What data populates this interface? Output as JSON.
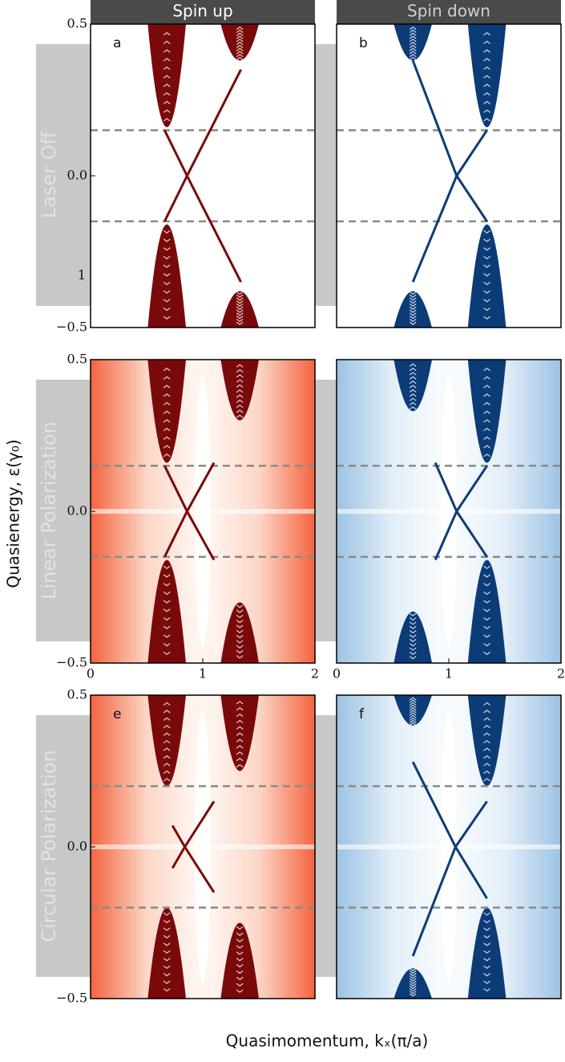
{
  "header": {
    "left": "Spin up",
    "right": "Spin down"
  },
  "row_labels": [
    "Laser Off",
    "Linear Polarization",
    "Circular Polarization"
  ],
  "y_label": "Quasienergy, ε(γ₀)",
  "x_label": "Quasimomentum, kₓ(π/a)",
  "chart_data": [
    {
      "type": "line",
      "label": "a",
      "color": "#7a0a0a",
      "xlim": [
        0,
        2
      ],
      "ylim": [
        -0.5,
        0.5
      ],
      "yticks": [
        0.5,
        {
          "value": 0,
          "label": "0.0"
        },
        {
          "value": -0.5,
          "label": "−0.5"
        }
      ],
      "annotations": [
        "1"
      ],
      "hlines": [
        0.15,
        -0.15
      ],
      "series": [
        {
          "x": [
            0.66,
            0.86,
            1.34
          ],
          "values": [
            0.15,
            0,
            -0.35
          ]
        },
        {
          "x": [
            0.66,
            0.86,
            1.34
          ],
          "values": [
            -0.15,
            0,
            0.35
          ]
        }
      ]
    },
    {
      "type": "line",
      "label": "b",
      "color": "#0b3c78",
      "xlim": [
        0,
        2
      ],
      "ylim": [
        -0.5,
        0.5
      ],
      "hlines": [
        0.15,
        -0.15
      ],
      "series": [
        {
          "x": [
            0.68,
            1.07,
            1.34
          ],
          "values": [
            0.38,
            0,
            -0.15
          ]
        },
        {
          "x": [
            0.68,
            1.07,
            1.34
          ],
          "values": [
            -0.35,
            0,
            0.15
          ]
        }
      ]
    },
    {
      "type": "line",
      "color": "#7a0a0a",
      "xlim": [
        0,
        2
      ],
      "ylim": [
        -0.5,
        0.5
      ],
      "yticks": [
        0.5,
        {
          "value": 0,
          "label": "0.0"
        },
        {
          "value": -0.5,
          "label": "−0.5"
        }
      ],
      "xticks": [
        0,
        1,
        2
      ],
      "hlines": [
        0.15,
        -0.15
      ],
      "series": [
        {
          "x": [
            0.66,
            0.86,
            1.1
          ],
          "values": [
            0.15,
            0,
            -0.16
          ]
        },
        {
          "x": [
            0.66,
            0.86,
            1.1
          ],
          "values": [
            -0.15,
            0,
            0.16
          ]
        }
      ]
    },
    {
      "type": "line",
      "color": "#0b3c78",
      "xlim": [
        0,
        2
      ],
      "ylim": [
        -0.5,
        0.5
      ],
      "xticks": [
        0,
        1,
        2
      ],
      "hlines": [
        0.15,
        -0.15
      ],
      "series": [
        {
          "x": [
            0.88,
            1.07,
            1.34
          ],
          "values": [
            0.16,
            0,
            -0.15
          ]
        },
        {
          "x": [
            0.88,
            1.07,
            1.34
          ],
          "values": [
            -0.16,
            0,
            0.15
          ]
        }
      ]
    },
    {
      "type": "line",
      "label": "e",
      "color": "#7a0a0a",
      "xlim": [
        0,
        2
      ],
      "ylim": [
        -0.5,
        0.5
      ],
      "yticks": [
        0.5,
        {
          "value": 0,
          "label": "0.0"
        },
        {
          "value": -0.5,
          "label": "−0.5"
        }
      ],
      "hlines": [
        0.2,
        -0.2
      ],
      "series": [
        {
          "x": [
            0.73,
            0.84,
            1.1
          ],
          "values": [
            0.07,
            0,
            -0.15
          ]
        },
        {
          "x": [
            0.73,
            0.84,
            1.1
          ],
          "values": [
            -0.07,
            0,
            0.15
          ]
        }
      ]
    },
    {
      "type": "line",
      "label": "f",
      "color": "#0b3c78",
      "xlim": [
        0,
        2
      ],
      "ylim": [
        -0.5,
        0.5
      ],
      "hlines": [
        0.2,
        -0.2
      ],
      "series": [
        {
          "x": [
            0.68,
            1.06,
            1.34
          ],
          "values": [
            0.28,
            0,
            -0.17
          ]
        },
        {
          "x": [
            0.68,
            1.06,
            1.34
          ],
          "values": [
            -0.36,
            0,
            0.15
          ]
        }
      ]
    }
  ]
}
